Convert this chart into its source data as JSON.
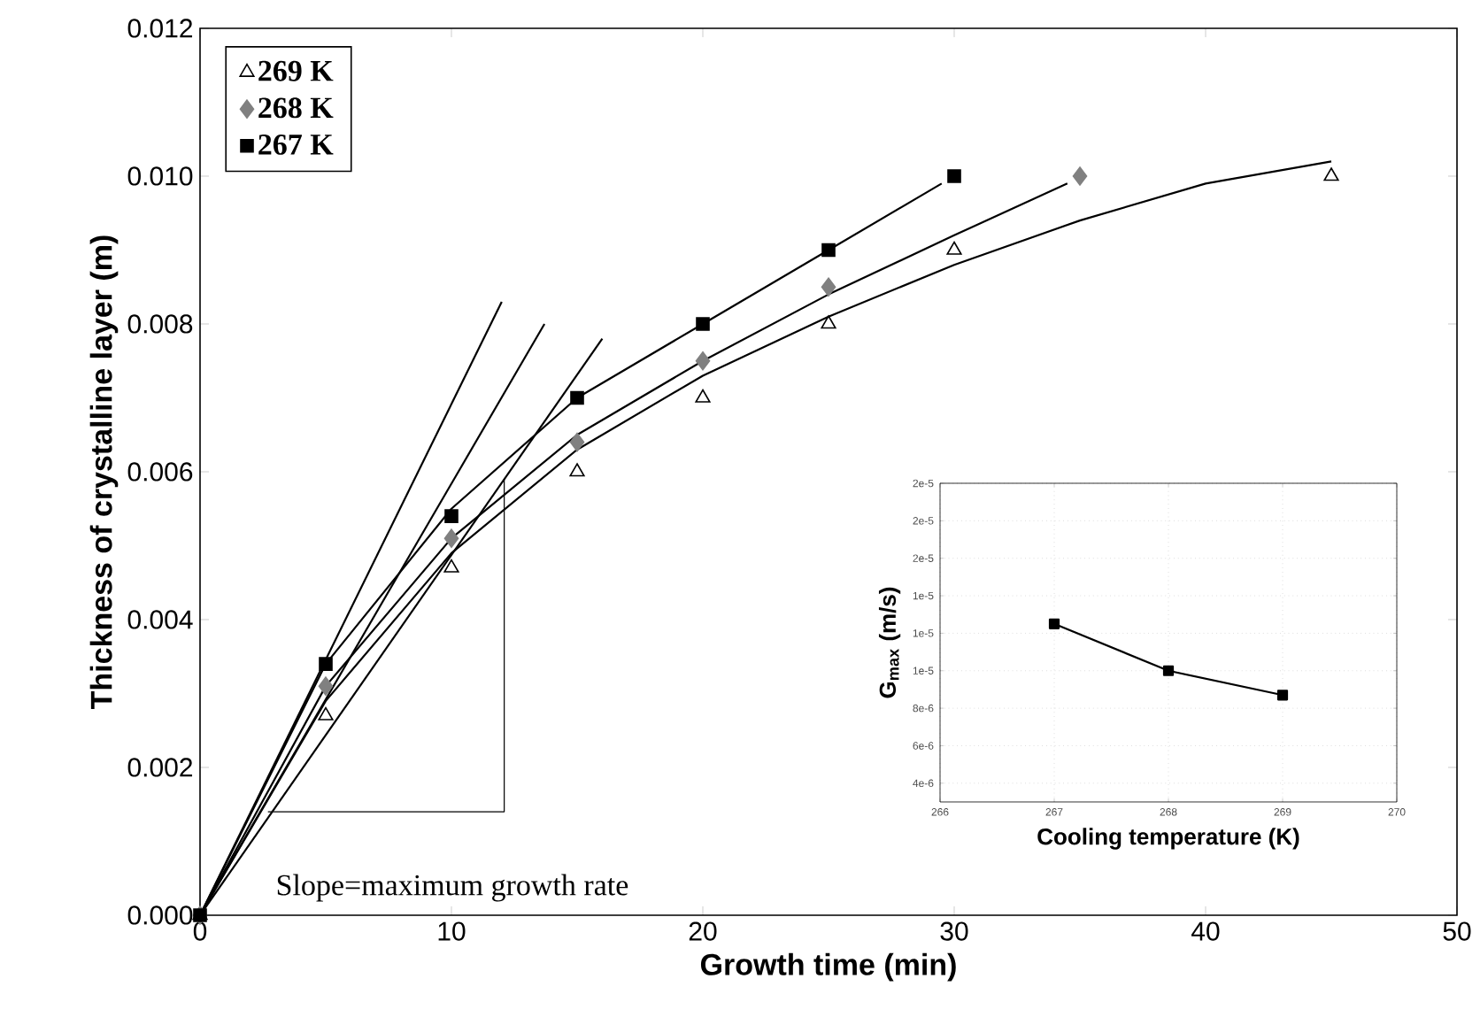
{
  "chart_data": [
    {
      "type": "scatter",
      "xlabel": "Growth time (min)",
      "ylabel": "Thickness of crystalline layer (m)",
      "xlim": [
        0,
        50
      ],
      "xticks": [
        0,
        10,
        20,
        30,
        40,
        50
      ],
      "ylim": [
        0,
        0.012
      ],
      "yticks": [
        {
          "value": 0,
          "label": "0.000"
        },
        {
          "value": 0.002,
          "label": "0.002"
        },
        {
          "value": 0.004,
          "label": "0.004"
        },
        {
          "value": 0.006,
          "label": "0.006"
        },
        {
          "value": 0.008,
          "label": "0.008"
        },
        {
          "value": 0.01,
          "label": "0.010"
        },
        {
          "value": 0.012,
          "label": "0.012"
        }
      ],
      "legend": "top left",
      "grid": false,
      "annotations": [
        "Slope=maximum growth rate"
      ],
      "series": [
        {
          "name": "269 K",
          "color": "#000000",
          "marker": "triangle",
          "x": [
            0,
            5,
            10,
            15,
            20,
            25,
            30,
            45
          ],
          "values": [
            0,
            0.0027,
            0.0047,
            0.006,
            0.007,
            0.008,
            0.009,
            0.01
          ]
        },
        {
          "name": "268 K",
          "color": "#808080",
          "marker": "diamond",
          "x": [
            0,
            5,
            10,
            15,
            20,
            25,
            35
          ],
          "values": [
            0,
            0.0031,
            0.0051,
            0.0064,
            0.0075,
            0.0085,
            0.01
          ]
        },
        {
          "name": "267 K",
          "color": "#000000",
          "marker": "square",
          "x": [
            0,
            5,
            10,
            15,
            20,
            25,
            30
          ],
          "values": [
            0,
            0.0034,
            0.0054,
            0.007,
            0.008,
            0.009,
            0.01
          ]
        },
        {
          "type": "line",
          "color": "#000000",
          "x": [
            0,
            5,
            10,
            15,
            20,
            25,
            30,
            35,
            40,
            45
          ],
          "values": [
            0,
            0.0029,
            0.0049,
            0.0063,
            0.0073,
            0.0081,
            0.0088,
            0.0094,
            0.0099,
            0.0102
          ]
        },
        {
          "type": "line",
          "color": "#000000",
          "x": [
            0,
            5,
            10,
            15,
            20,
            25,
            30,
            34.5
          ],
          "values": [
            0,
            0.0031,
            0.0051,
            0.0065,
            0.0075,
            0.0084,
            0.0092,
            0.0099
          ]
        },
        {
          "type": "line",
          "color": "#000000",
          "x": [
            0,
            5,
            10,
            15,
            20,
            25,
            29.5
          ],
          "values": [
            0,
            0.0034,
            0.0055,
            0.007,
            0.008,
            0.009,
            0.0099
          ]
        },
        {
          "type": "line",
          "color": "#000000",
          "x": [
            0,
            12.0
          ],
          "values": [
            0,
            0.0083
          ]
        },
        {
          "type": "line",
          "color": "#000000",
          "x": [
            0,
            13.7
          ],
          "values": [
            0,
            0.008
          ]
        },
        {
          "type": "line",
          "color": "#000000",
          "x": [
            0,
            16.0
          ],
          "values": [
            0,
            0.0078
          ]
        },
        {
          "type": "line",
          "color": "#000000",
          "x": [
            2.7,
            12.1,
            12.1
          ],
          "values": [
            0.0014,
            0.0014,
            0.0059
          ]
        }
      ]
    },
    {
      "type": "line",
      "xlabel": "Cooling temperature (K)",
      "ylabel": "G$_{max}$ (m/s)",
      "xlim": [
        266,
        270
      ],
      "xticks": [
        266,
        267,
        268,
        269,
        270
      ],
      "ylim": [
        3e-06,
        2e-05
      ],
      "yticks": [
        {
          "value": 4e-06,
          "label": "4e-6"
        },
        {
          "value": 6e-06,
          "label": "6e-6"
        },
        {
          "value": 8e-06,
          "label": "8e-6"
        },
        {
          "value": 1e-05,
          "label": "1e-5"
        },
        {
          "value": 1.2e-05,
          "label": "1e-5"
        },
        {
          "value": 1.4e-05,
          "label": "1e-5"
        },
        {
          "value": 1.6e-05,
          "label": "2e-5"
        },
        {
          "value": 1.8e-05,
          "label": "2e-5"
        },
        {
          "value": 2e-05,
          "label": "2e-5"
        }
      ],
      "grid": true,
      "marker": "square",
      "series": [
        {
          "color": "#000000",
          "x": [
            267,
            268,
            269
          ],
          "values": [
            1.25e-05,
            1e-05,
            8.7e-06
          ]
        }
      ]
    }
  ]
}
